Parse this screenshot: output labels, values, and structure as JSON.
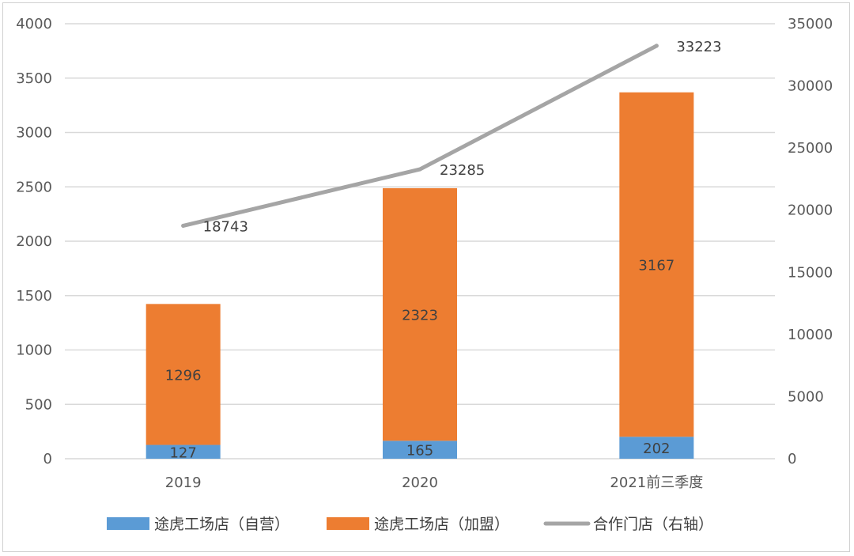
{
  "chart_data": {
    "type": "bar",
    "categories": [
      "2019",
      "2020",
      "2021前三季度"
    ],
    "series": [
      {
        "name": "途虎工场店（自营）",
        "type": "bar",
        "axis": "left",
        "color": "#5b9bd5",
        "values": [
          127,
          165,
          202
        ]
      },
      {
        "name": "途虎工场店（加盟）",
        "type": "bar",
        "axis": "left",
        "color": "#ed7d31",
        "values": [
          1296,
          2323,
          3167
        ]
      },
      {
        "name": "合作门店（右轴）",
        "type": "line",
        "axis": "right",
        "color": "#a5a5a5",
        "values": [
          18743,
          23285,
          33223
        ]
      }
    ],
    "stacked": true,
    "ylim_left": [
      0,
      4000
    ],
    "yticks_left": [
      "0",
      "500",
      "1000",
      "1500",
      "2000",
      "2500",
      "3000",
      "3500",
      "4000"
    ],
    "ylim_right": [
      0,
      35000
    ],
    "yticks_right": [
      "0",
      "5000",
      "10000",
      "15000",
      "20000",
      "25000",
      "30000",
      "35000"
    ],
    "grid": true,
    "legend_position": "bottom",
    "title": "",
    "xlabel": "",
    "ylabel": ""
  }
}
